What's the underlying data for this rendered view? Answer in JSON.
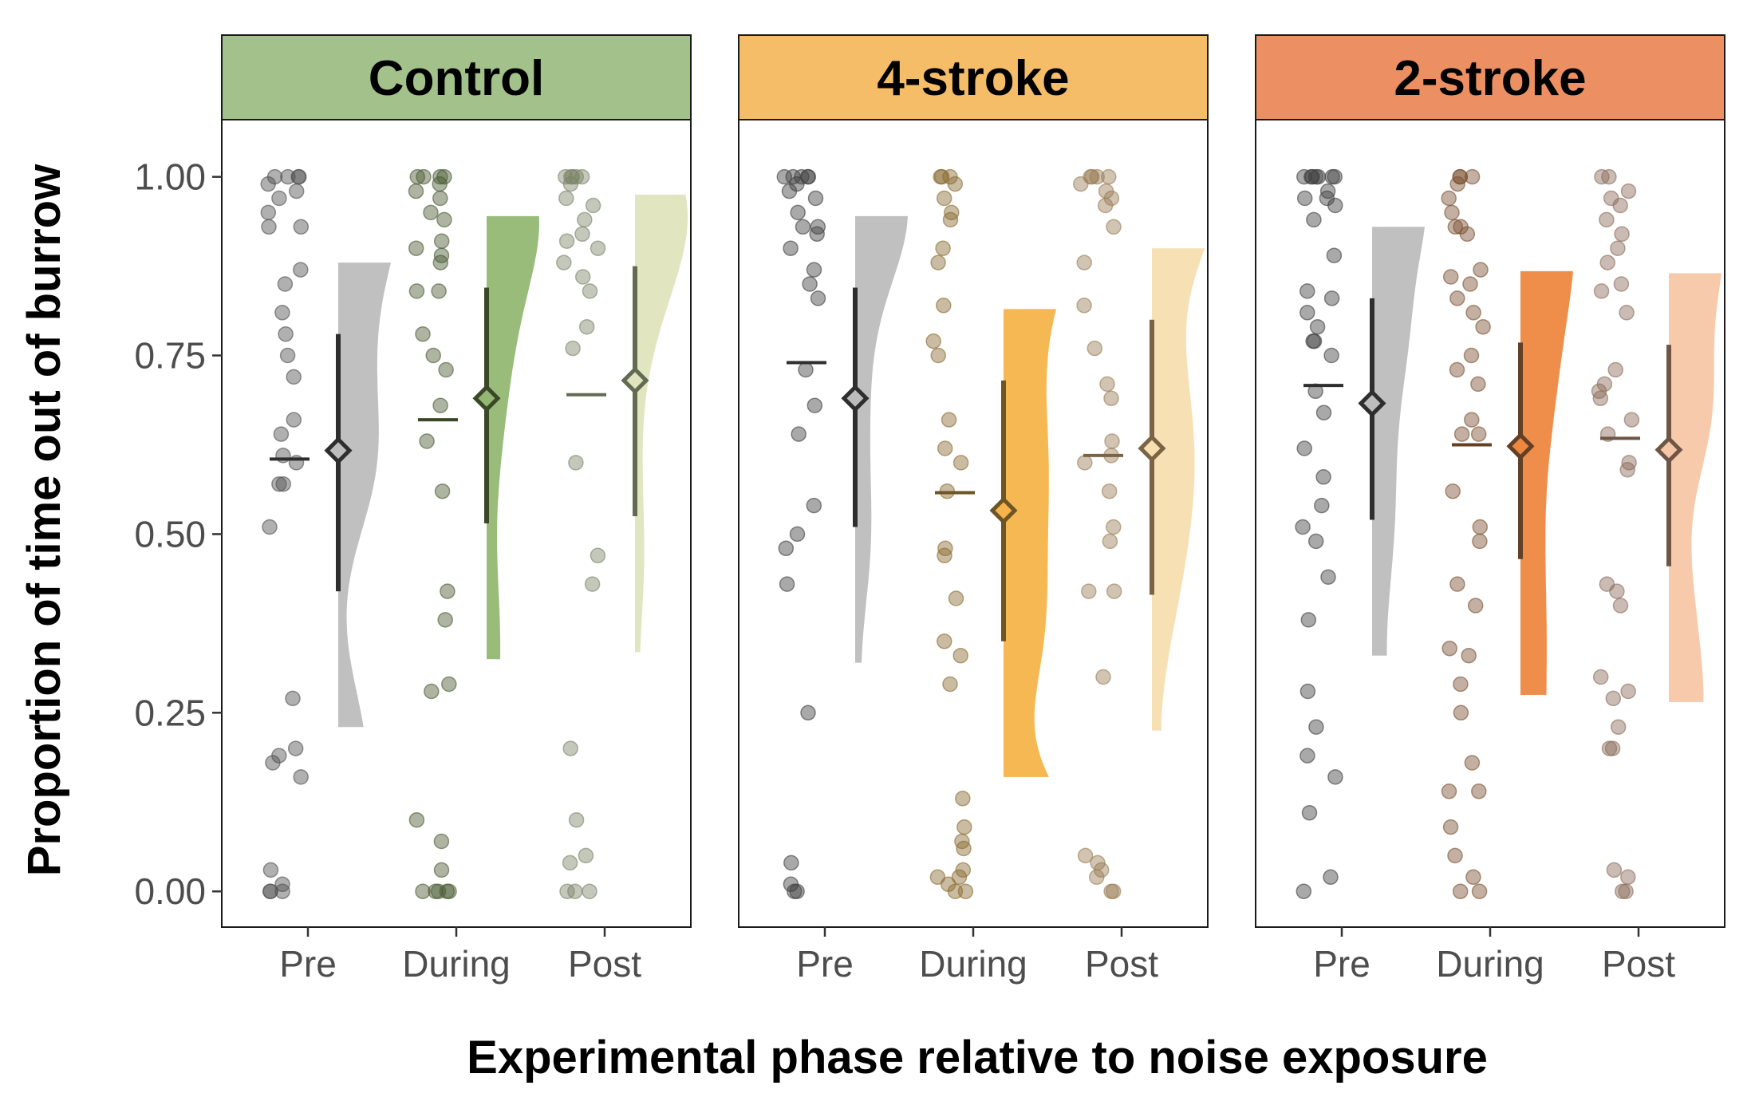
{
  "chart_data": {
    "type": "scatter",
    "subtype": "raincloud (jittered points, half-density, median bar, mean with interval)",
    "ylabel": "Proportion of time out of burrow",
    "xlabel": "Experimental phase relative to noise exposure",
    "ylim": [
      -0.05,
      1.08
    ],
    "yticks": [
      "0.00",
      "0.25",
      "0.50",
      "0.75",
      "1.00"
    ],
    "ytick_values": [
      0,
      0.25,
      0.5,
      0.75,
      1.0
    ],
    "categories": [
      "Pre",
      "During",
      "Post"
    ],
    "grid": false,
    "panels": [
      {
        "title": "Control",
        "strip_color": "#a3c18a",
        "groups": [
          {
            "category": "Pre",
            "color": "#bdbdbd",
            "point_color": "#505050",
            "median": 0.605,
            "mean": 0.617,
            "ci": [
              0.42,
              0.78
            ],
            "points": [
              1.0,
              1.0,
              1.0,
              1.0,
              0.99,
              0.98,
              0.97,
              0.95,
              0.93,
              0.93,
              0.87,
              0.85,
              0.81,
              0.78,
              0.75,
              0.72,
              0.66,
              0.64,
              0.61,
              0.6,
              0.57,
              0.57,
              0.51,
              0.27,
              0.2,
              0.19,
              0.18,
              0.16,
              0.03,
              0.01,
              0.0,
              0.0,
              0.0
            ]
          },
          {
            "category": "During",
            "color": "#93b874",
            "point_color": "#4a5a30",
            "median": 0.66,
            "mean": 0.69,
            "ci": [
              0.515,
              0.845
            ],
            "points": [
              1.0,
              1.0,
              1.0,
              1.0,
              0.99,
              0.98,
              0.97,
              0.95,
              0.94,
              0.91,
              0.9,
              0.89,
              0.88,
              0.84,
              0.84,
              0.78,
              0.75,
              0.73,
              0.68,
              0.63,
              0.56,
              0.42,
              0.38,
              0.29,
              0.28,
              0.1,
              0.07,
              0.03,
              0.0,
              0.0,
              0.0,
              0.0,
              0.0
            ]
          },
          {
            "category": "Post",
            "color": "#dfe4bd",
            "point_color": "#7a8468",
            "median": 0.695,
            "mean": 0.715,
            "ci": [
              0.525,
              0.875
            ],
            "points": [
              1.0,
              1.0,
              1.0,
              1.0,
              1.0,
              0.99,
              0.97,
              0.96,
              0.94,
              0.92,
              0.91,
              0.9,
              0.88,
              0.86,
              0.84,
              0.79,
              0.76,
              0.6,
              0.47,
              0.43,
              0.2,
              0.1,
              0.05,
              0.04,
              0.0,
              0.0,
              0.0
            ]
          }
        ]
      },
      {
        "title": "4-stroke",
        "strip_color": "#f6bd69",
        "groups": [
          {
            "category": "Pre",
            "color": "#bdbdbd",
            "point_color": "#404040",
            "median": 0.74,
            "mean": 0.69,
            "ci": [
              0.51,
              0.845
            ],
            "points": [
              1.0,
              1.0,
              1.0,
              1.0,
              1.0,
              0.99,
              0.98,
              0.97,
              0.95,
              0.93,
              0.93,
              0.92,
              0.9,
              0.87,
              0.85,
              0.83,
              0.73,
              0.68,
              0.64,
              0.54,
              0.5,
              0.48,
              0.43,
              0.25,
              0.04,
              0.01,
              0.0,
              0.0
            ]
          },
          {
            "category": "During",
            "color": "#f4b44a",
            "point_color": "#8a6a30",
            "median": 0.558,
            "mean": 0.533,
            "ci": [
              0.35,
              0.715
            ],
            "points": [
              1.0,
              1.0,
              1.0,
              0.99,
              0.97,
              0.95,
              0.94,
              0.9,
              0.88,
              0.82,
              0.77,
              0.75,
              0.66,
              0.62,
              0.6,
              0.56,
              0.48,
              0.47,
              0.41,
              0.35,
              0.33,
              0.29,
              0.13,
              0.09,
              0.07,
              0.06,
              0.03,
              0.02,
              0.02,
              0.01,
              0.0,
              0.0
            ]
          },
          {
            "category": "Post",
            "color": "#f7dfb0",
            "point_color": "#9a7d55",
            "median": 0.61,
            "mean": 0.62,
            "ci": [
              0.415,
              0.8
            ],
            "points": [
              1.0,
              1.0,
              1.0,
              1.0,
              0.99,
              0.98,
              0.97,
              0.96,
              0.93,
              0.88,
              0.82,
              0.76,
              0.71,
              0.69,
              0.63,
              0.61,
              0.6,
              0.56,
              0.51,
              0.49,
              0.42,
              0.42,
              0.3,
              0.05,
              0.04,
              0.03,
              0.02,
              0.0,
              0.0
            ]
          }
        ]
      },
      {
        "title": "2-stroke",
        "strip_color": "#ec9064",
        "groups": [
          {
            "category": "Pre",
            "color": "#bdbdbd",
            "point_color": "#404040",
            "median": 0.708,
            "mean": 0.683,
            "ci": [
              0.52,
              0.83
            ],
            "points": [
              1.0,
              1.0,
              1.0,
              1.0,
              1.0,
              1.0,
              1.0,
              0.98,
              0.97,
              0.97,
              0.96,
              0.94,
              0.89,
              0.84,
              0.83,
              0.81,
              0.79,
              0.77,
              0.77,
              0.75,
              0.7,
              0.67,
              0.62,
              0.58,
              0.54,
              0.51,
              0.49,
              0.44,
              0.38,
              0.28,
              0.23,
              0.19,
              0.16,
              0.11,
              0.02,
              0.0
            ]
          },
          {
            "category": "During",
            "color": "#ee8740",
            "point_color": "#7a5030",
            "median": 0.625,
            "mean": 0.623,
            "ci": [
              0.465,
              0.768
            ],
            "points": [
              1.0,
              1.0,
              1.0,
              0.99,
              0.97,
              0.95,
              0.93,
              0.93,
              0.92,
              0.87,
              0.86,
              0.85,
              0.83,
              0.81,
              0.79,
              0.75,
              0.73,
              0.71,
              0.66,
              0.64,
              0.64,
              0.56,
              0.51,
              0.49,
              0.43,
              0.4,
              0.34,
              0.33,
              0.29,
              0.25,
              0.18,
              0.14,
              0.14,
              0.09,
              0.05,
              0.02,
              0.0,
              0.0
            ]
          },
          {
            "category": "Post",
            "color": "#f5c7a6",
            "point_color": "#8a6a58",
            "median": 0.634,
            "mean": 0.618,
            "ci": [
              0.455,
              0.765
            ],
            "points": [
              1.0,
              1.0,
              0.98,
              0.97,
              0.96,
              0.94,
              0.92,
              0.9,
              0.88,
              0.85,
              0.84,
              0.81,
              0.73,
              0.71,
              0.7,
              0.69,
              0.66,
              0.64,
              0.6,
              0.59,
              0.43,
              0.42,
              0.4,
              0.3,
              0.28,
              0.27,
              0.23,
              0.2,
              0.2,
              0.03,
              0.02,
              0.0,
              0.0
            ]
          }
        ]
      }
    ]
  }
}
